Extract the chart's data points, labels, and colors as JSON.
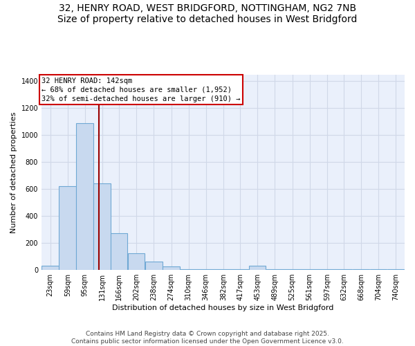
{
  "title_line1": "32, HENRY ROAD, WEST BRIDGFORD, NOTTINGHAM, NG2 7NB",
  "title_line2": "Size of property relative to detached houses in West Bridgford",
  "xlabel": "Distribution of detached houses by size in West Bridgford",
  "ylabel": "Number of detached properties",
  "bar_color": "#c8d9ef",
  "bar_edge_color": "#6fa8d4",
  "bg_color": "#eaf0fb",
  "grid_color": "#d0d8e8",
  "annotation_text": "32 HENRY ROAD: 142sqm\n← 68% of detached houses are smaller (1,952)\n32% of semi-detached houses are larger (910) →",
  "vline_x": 142,
  "vline_color": "#990000",
  "categories": [
    "23sqm",
    "59sqm",
    "95sqm",
    "131sqm",
    "166sqm",
    "202sqm",
    "238sqm",
    "274sqm",
    "310sqm",
    "346sqm",
    "382sqm",
    "417sqm",
    "453sqm",
    "489sqm",
    "525sqm",
    "561sqm",
    "597sqm",
    "632sqm",
    "668sqm",
    "704sqm",
    "740sqm"
  ],
  "bin_left_edges": [
    23,
    59,
    95,
    131,
    166,
    202,
    238,
    274,
    310,
    346,
    382,
    417,
    453,
    489,
    525,
    561,
    597,
    632,
    668,
    704,
    740
  ],
  "bin_width": 36,
  "values": [
    30,
    620,
    1090,
    640,
    275,
    125,
    60,
    25,
    5,
    5,
    5,
    5,
    30,
    5,
    5,
    5,
    5,
    5,
    5,
    5,
    5
  ],
  "ylim": [
    0,
    1450
  ],
  "yticks": [
    0,
    200,
    400,
    600,
    800,
    1000,
    1200,
    1400
  ],
  "title_fontsize": 10,
  "axis_label_fontsize": 8,
  "tick_fontsize": 7,
  "ann_fontsize": 7.5,
  "footer_fontsize": 6.5,
  "footer_line1": "Contains HM Land Registry data © Crown copyright and database right 2025.",
  "footer_line2": "Contains public sector information licensed under the Open Government Licence v3.0."
}
